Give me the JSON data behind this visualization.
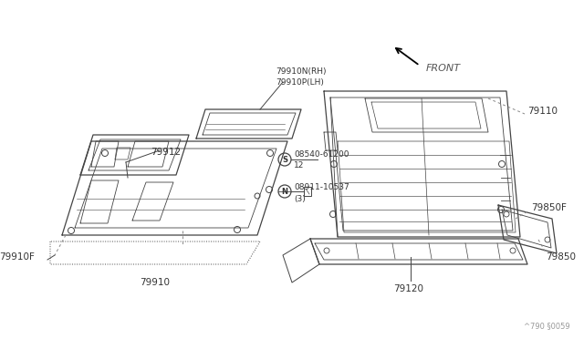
{
  "bg_color": "#ffffff",
  "line_color": "#444444",
  "text_color": "#333333",
  "footer": "^790 §0059",
  "parts": [
    {
      "id": "79910",
      "label": "79910"
    },
    {
      "id": "79910F",
      "label": "79910F"
    },
    {
      "id": "79912",
      "label": "79912"
    },
    {
      "id": "79910N",
      "label": "79910N(RH)"
    },
    {
      "id": "79910P",
      "label": "79910P(LH)"
    },
    {
      "id": "08540",
      "label": "S 08540-61200"
    },
    {
      "id": "12",
      "label": "12"
    },
    {
      "id": "08911",
      "label": "N 08911-10537"
    },
    {
      "id": "3",
      "label": "(3)"
    },
    {
      "id": "79110",
      "label": "79110"
    },
    {
      "id": "79850F",
      "label": "79850F"
    },
    {
      "id": "79850",
      "label": "79850"
    },
    {
      "id": "79120",
      "label": "79120"
    },
    {
      "id": "FRONT",
      "label": "FRONT"
    }
  ]
}
